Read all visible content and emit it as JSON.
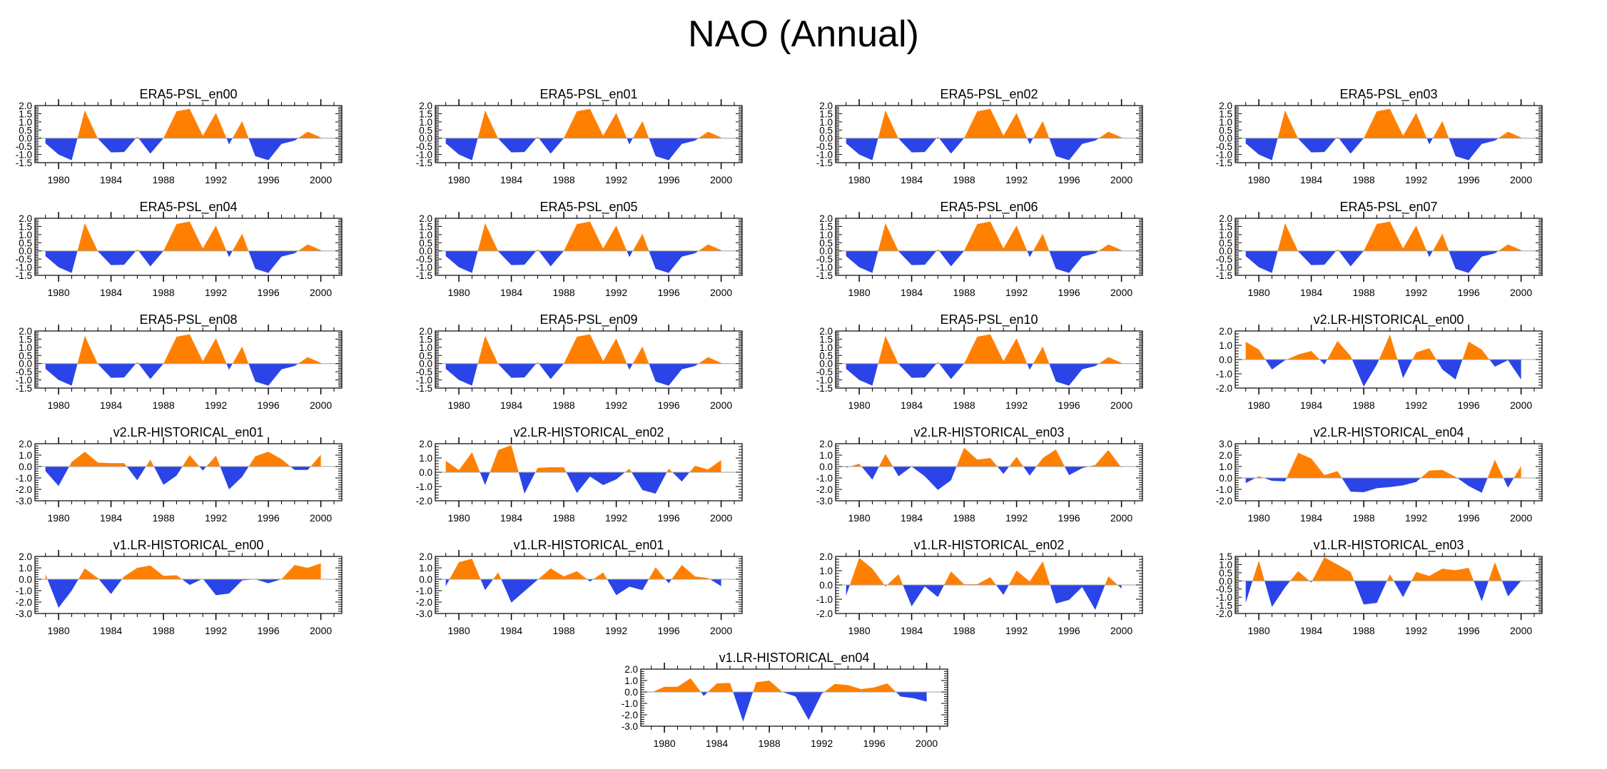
{
  "title": "NAO (Annual)",
  "colors": {
    "positive": "#ff8000",
    "negative": "#2a44e8",
    "zero_line": "#a0a0a0",
    "axis": "#000000"
  },
  "chart_data": {
    "type": "area",
    "title": "NAO (Annual)",
    "xlabel": "",
    "ylabel": "",
    "x": [
      1979,
      1980,
      1981,
      1982,
      1983,
      1984,
      1985,
      1986,
      1987,
      1988,
      1989,
      1990,
      1991,
      1992,
      1993,
      1994,
      1995,
      1996,
      1997,
      1998,
      1999,
      2000
    ],
    "xlim": [
      1978.2,
      2001.6
    ],
    "x_tick_labels": [
      "1980",
      "1984",
      "1988",
      "1992",
      "1996",
      "2000"
    ],
    "x_ticks": [
      1980,
      1984,
      1988,
      1992,
      1996,
      2000
    ],
    "fill_rule": "orange above zero, blue below zero",
    "grid": false,
    "panels": [
      {
        "title": "ERA5-PSL_en00",
        "ylim": [
          -1.5,
          2.0
        ],
        "yticks": [
          "2.0",
          "1.5",
          "1.0",
          "0.5",
          "0.0",
          "-0.5",
          "-1.0",
          "-1.5"
        ],
        "values": [
          -0.32,
          -1.0,
          -1.35,
          1.7,
          -0.03,
          -0.87,
          -0.85,
          0.1,
          -0.95,
          0.0,
          1.65,
          1.8,
          0.15,
          1.55,
          -0.38,
          1.05,
          -1.1,
          -1.35,
          -0.35,
          -0.15,
          0.4,
          0.05
        ]
      },
      {
        "title": "ERA5-PSL_en01",
        "ylim": [
          -1.5,
          2.0
        ],
        "yticks": [
          "2.0",
          "1.5",
          "1.0",
          "0.5",
          "0.0",
          "-0.5",
          "-1.0",
          "-1.5"
        ],
        "values": [
          -0.32,
          -1.0,
          -1.35,
          1.7,
          -0.03,
          -0.87,
          -0.85,
          0.1,
          -0.95,
          0.0,
          1.65,
          1.8,
          0.15,
          1.55,
          -0.38,
          1.05,
          -1.1,
          -1.35,
          -0.35,
          -0.15,
          0.4,
          0.05
        ]
      },
      {
        "title": "ERA5-PSL_en02",
        "ylim": [
          -1.5,
          2.0
        ],
        "yticks": [
          "2.0",
          "1.5",
          "1.0",
          "0.5",
          "0.0",
          "-0.5",
          "-1.0",
          "-1.5"
        ],
        "values": [
          -0.32,
          -1.0,
          -1.35,
          1.7,
          -0.03,
          -0.87,
          -0.85,
          0.1,
          -0.95,
          0.0,
          1.65,
          1.8,
          0.15,
          1.55,
          -0.38,
          1.05,
          -1.1,
          -1.35,
          -0.35,
          -0.15,
          0.4,
          0.05
        ]
      },
      {
        "title": "ERA5-PSL_en03",
        "ylim": [
          -1.5,
          2.0
        ],
        "yticks": [
          "2.0",
          "1.5",
          "1.0",
          "0.5",
          "0.0",
          "-0.5",
          "-1.0",
          "-1.5"
        ],
        "values": [
          -0.32,
          -1.0,
          -1.35,
          1.7,
          -0.03,
          -0.87,
          -0.85,
          0.1,
          -0.95,
          0.0,
          1.65,
          1.8,
          0.15,
          1.55,
          -0.38,
          1.05,
          -1.1,
          -1.35,
          -0.35,
          -0.15,
          0.4,
          0.05
        ]
      },
      {
        "title": "ERA5-PSL_en04",
        "ylim": [
          -1.5,
          2.0
        ],
        "yticks": [
          "2.0",
          "1.5",
          "1.0",
          "0.5",
          "0.0",
          "-0.5",
          "-1.0",
          "-1.5"
        ],
        "values": [
          -0.32,
          -1.0,
          -1.35,
          1.7,
          -0.03,
          -0.87,
          -0.85,
          0.1,
          -0.95,
          0.0,
          1.65,
          1.8,
          0.15,
          1.55,
          -0.38,
          1.05,
          -1.1,
          -1.35,
          -0.35,
          -0.15,
          0.4,
          0.05
        ]
      },
      {
        "title": "ERA5-PSL_en05",
        "ylim": [
          -1.5,
          2.0
        ],
        "yticks": [
          "2.0",
          "1.5",
          "1.0",
          "0.5",
          "0.0",
          "-0.5",
          "-1.0",
          "-1.5"
        ],
        "values": [
          -0.32,
          -1.0,
          -1.35,
          1.7,
          -0.03,
          -0.87,
          -0.85,
          0.1,
          -0.95,
          0.0,
          1.65,
          1.8,
          0.15,
          1.55,
          -0.38,
          1.05,
          -1.1,
          -1.35,
          -0.35,
          -0.15,
          0.4,
          0.05
        ]
      },
      {
        "title": "ERA5-PSL_en06",
        "ylim": [
          -1.5,
          2.0
        ],
        "yticks": [
          "2.0",
          "1.5",
          "1.0",
          "0.5",
          "0.0",
          "-0.5",
          "-1.0",
          "-1.5"
        ],
        "values": [
          -0.32,
          -1.0,
          -1.35,
          1.7,
          -0.03,
          -0.87,
          -0.85,
          0.1,
          -0.95,
          0.0,
          1.65,
          1.8,
          0.15,
          1.55,
          -0.38,
          1.05,
          -1.1,
          -1.35,
          -0.35,
          -0.15,
          0.4,
          0.05
        ]
      },
      {
        "title": "ERA5-PSL_en07",
        "ylim": [
          -1.5,
          2.0
        ],
        "yticks": [
          "2.0",
          "1.5",
          "1.0",
          "0.5",
          "0.0",
          "-0.5",
          "-1.0",
          "-1.5"
        ],
        "values": [
          -0.32,
          -1.0,
          -1.35,
          1.7,
          -0.03,
          -0.87,
          -0.85,
          0.1,
          -0.95,
          0.0,
          1.65,
          1.8,
          0.15,
          1.55,
          -0.38,
          1.05,
          -1.1,
          -1.35,
          -0.35,
          -0.15,
          0.4,
          0.05
        ]
      },
      {
        "title": "ERA5-PSL_en08",
        "ylim": [
          -1.5,
          2.0
        ],
        "yticks": [
          "2.0",
          "1.5",
          "1.0",
          "0.5",
          "0.0",
          "-0.5",
          "-1.0",
          "-1.5"
        ],
        "values": [
          -0.32,
          -1.0,
          -1.35,
          1.7,
          -0.03,
          -0.87,
          -0.85,
          0.1,
          -0.95,
          0.0,
          1.65,
          1.8,
          0.15,
          1.55,
          -0.38,
          1.05,
          -1.1,
          -1.35,
          -0.35,
          -0.15,
          0.4,
          0.05
        ]
      },
      {
        "title": "ERA5-PSL_en09",
        "ylim": [
          -1.5,
          2.0
        ],
        "yticks": [
          "2.0",
          "1.5",
          "1.0",
          "0.5",
          "0.0",
          "-0.5",
          "-1.0",
          "-1.5"
        ],
        "values": [
          -0.32,
          -1.0,
          -1.35,
          1.7,
          -0.03,
          -0.87,
          -0.85,
          0.1,
          -0.95,
          0.0,
          1.65,
          1.8,
          0.15,
          1.55,
          -0.38,
          1.05,
          -1.1,
          -1.35,
          -0.35,
          -0.15,
          0.4,
          0.05
        ]
      },
      {
        "title": "ERA5-PSL_en10",
        "ylim": [
          -1.5,
          2.0
        ],
        "yticks": [
          "2.0",
          "1.5",
          "1.0",
          "0.5",
          "0.0",
          "-0.5",
          "-1.0",
          "-1.5"
        ],
        "values": [
          -0.32,
          -1.0,
          -1.35,
          1.7,
          -0.03,
          -0.87,
          -0.85,
          0.1,
          -0.95,
          0.0,
          1.65,
          1.8,
          0.15,
          1.55,
          -0.38,
          1.05,
          -1.1,
          -1.35,
          -0.35,
          -0.15,
          0.4,
          0.05
        ]
      },
      {
        "title": "v2.LR-HISTORICAL_en00",
        "ylim": [
          -2.0,
          2.0
        ],
        "yticks": [
          "2.0",
          "1.0",
          "0.0",
          "-1.0",
          "-2.0"
        ],
        "values": [
          1.25,
          0.7,
          -0.7,
          -0.05,
          0.35,
          0.6,
          -0.35,
          1.3,
          0.25,
          -1.9,
          -0.35,
          1.75,
          -1.3,
          0.5,
          0.8,
          -0.7,
          -1.4,
          1.25,
          0.7,
          -0.5,
          -0.05,
          -1.4
        ]
      },
      {
        "title": "v2.LR-HISTORICAL_en01",
        "ylim": [
          -3.0,
          2.0
        ],
        "yticks": [
          "2.0",
          "1.0",
          "0.0",
          "-1.0",
          "-2.0",
          "-3.0"
        ],
        "values": [
          -0.4,
          -1.7,
          0.4,
          1.3,
          0.35,
          0.3,
          0.3,
          -1.2,
          0.6,
          -1.6,
          -0.8,
          1.0,
          -0.35,
          0.95,
          -2.0,
          -0.9,
          0.9,
          1.3,
          0.65,
          -0.3,
          -0.3,
          1.05
        ]
      },
      {
        "title": "v2.LR-HISTORICAL_en02",
        "ylim": [
          -2.0,
          2.0
        ],
        "yticks": [
          "2.0",
          "1.0",
          "0.0",
          "-1.0",
          "-2.0"
        ],
        "values": [
          0.8,
          0.15,
          1.4,
          -0.9,
          1.55,
          1.9,
          -1.5,
          0.3,
          0.35,
          0.35,
          -1.45,
          -0.3,
          -0.9,
          -0.5,
          0.25,
          -1.25,
          -1.5,
          0.25,
          -0.65,
          0.45,
          0.2,
          0.85
        ]
      },
      {
        "title": "v2.LR-HISTORICAL_en03",
        "ylim": [
          -3.0,
          2.0
        ],
        "yticks": [
          "2.0",
          "1.0",
          "0.0",
          "-1.0",
          "-2.0",
          "-3.0"
        ],
        "values": [
          -0.1,
          0.25,
          -1.15,
          1.1,
          -0.85,
          0.0,
          -0.85,
          -2.05,
          -1.2,
          1.65,
          0.6,
          0.75,
          -0.65,
          0.85,
          -0.8,
          0.75,
          1.5,
          -0.75,
          -0.15,
          0.15,
          1.45,
          -0.1
        ]
      },
      {
        "title": "v2.LR-HISTORICAL_en04",
        "ylim": [
          -2.0,
          3.0
        ],
        "yticks": [
          "3.0",
          "2.0",
          "1.0",
          "0.0",
          "-1.0",
          "-2.0"
        ],
        "values": [
          -0.45,
          0.15,
          -0.25,
          -0.3,
          2.2,
          1.7,
          0.25,
          0.6,
          -1.2,
          -1.25,
          -0.9,
          -0.8,
          -0.65,
          -0.35,
          0.65,
          0.7,
          0.1,
          -0.7,
          -1.3,
          1.6,
          -0.85,
          1.05
        ]
      },
      {
        "title": "v1.LR-HISTORICAL_en00",
        "ylim": [
          -3.0,
          2.0
        ],
        "yticks": [
          "2.0",
          "1.0",
          "0.0",
          "-1.0",
          "-2.0",
          "-3.0"
        ],
        "values": [
          0.45,
          -2.5,
          -1.0,
          0.95,
          0.1,
          -1.3,
          0.25,
          1.0,
          1.2,
          0.3,
          0.35,
          -0.5,
          0.05,
          -1.4,
          -1.25,
          -0.1,
          0.0,
          -0.35,
          0.0,
          1.25,
          1.0,
          1.4
        ]
      },
      {
        "title": "v1.LR-HISTORICAL_en01",
        "ylim": [
          -3.0,
          2.0
        ],
        "yticks": [
          "2.0",
          "1.0",
          "0.0",
          "-1.0",
          "-2.0",
          "-3.0"
        ],
        "values": [
          -0.6,
          1.5,
          1.8,
          -0.95,
          0.6,
          -2.05,
          -1.05,
          -0.05,
          0.95,
          0.25,
          0.7,
          -0.2,
          0.6,
          -1.4,
          -0.65,
          -0.95,
          1.05,
          -0.35,
          1.25,
          0.25,
          0.1,
          -0.6
        ]
      },
      {
        "title": "v1.LR-HISTORICAL_en02",
        "ylim": [
          -2.0,
          2.0
        ],
        "yticks": [
          "2.0",
          "1.0",
          "0.0",
          "-1.0",
          "-2.0"
        ],
        "values": [
          -0.75,
          1.9,
          1.15,
          -0.1,
          0.75,
          -1.5,
          -0.1,
          -0.85,
          0.95,
          0.05,
          0.05,
          0.55,
          -0.7,
          1.0,
          0.25,
          1.65,
          -1.3,
          -1.05,
          -0.15,
          -1.75,
          0.6,
          -0.25
        ]
      },
      {
        "title": "v1.LR-HISTORICAL_en03",
        "ylim": [
          -2.0,
          1.5
        ],
        "yticks": [
          "1.5",
          "1.0",
          "0.5",
          "0.0",
          "-0.5",
          "-1.0",
          "-1.5",
          "-2.0"
        ],
        "values": [
          -1.35,
          1.25,
          -1.6,
          -0.4,
          0.6,
          -0.1,
          1.45,
          1.0,
          0.55,
          -1.45,
          -1.35,
          0.4,
          -1.0,
          0.55,
          0.3,
          0.75,
          0.65,
          0.8,
          -1.25,
          1.15,
          -0.95,
          0.0
        ]
      },
      {
        "title": "v1.LR-HISTORICAL_en04",
        "ylim": [
          -3.0,
          2.0
        ],
        "yticks": [
          "2.0",
          "1.0",
          "0.0",
          "-1.0",
          "-2.0",
          "-3.0"
        ],
        "values": [
          -0.05,
          0.45,
          0.45,
          1.2,
          -0.35,
          0.75,
          0.8,
          -2.6,
          0.85,
          1.0,
          0.0,
          -0.4,
          -2.45,
          -0.15,
          0.7,
          0.6,
          0.25,
          0.4,
          0.75,
          -0.4,
          -0.55,
          -0.85
        ]
      }
    ]
  }
}
